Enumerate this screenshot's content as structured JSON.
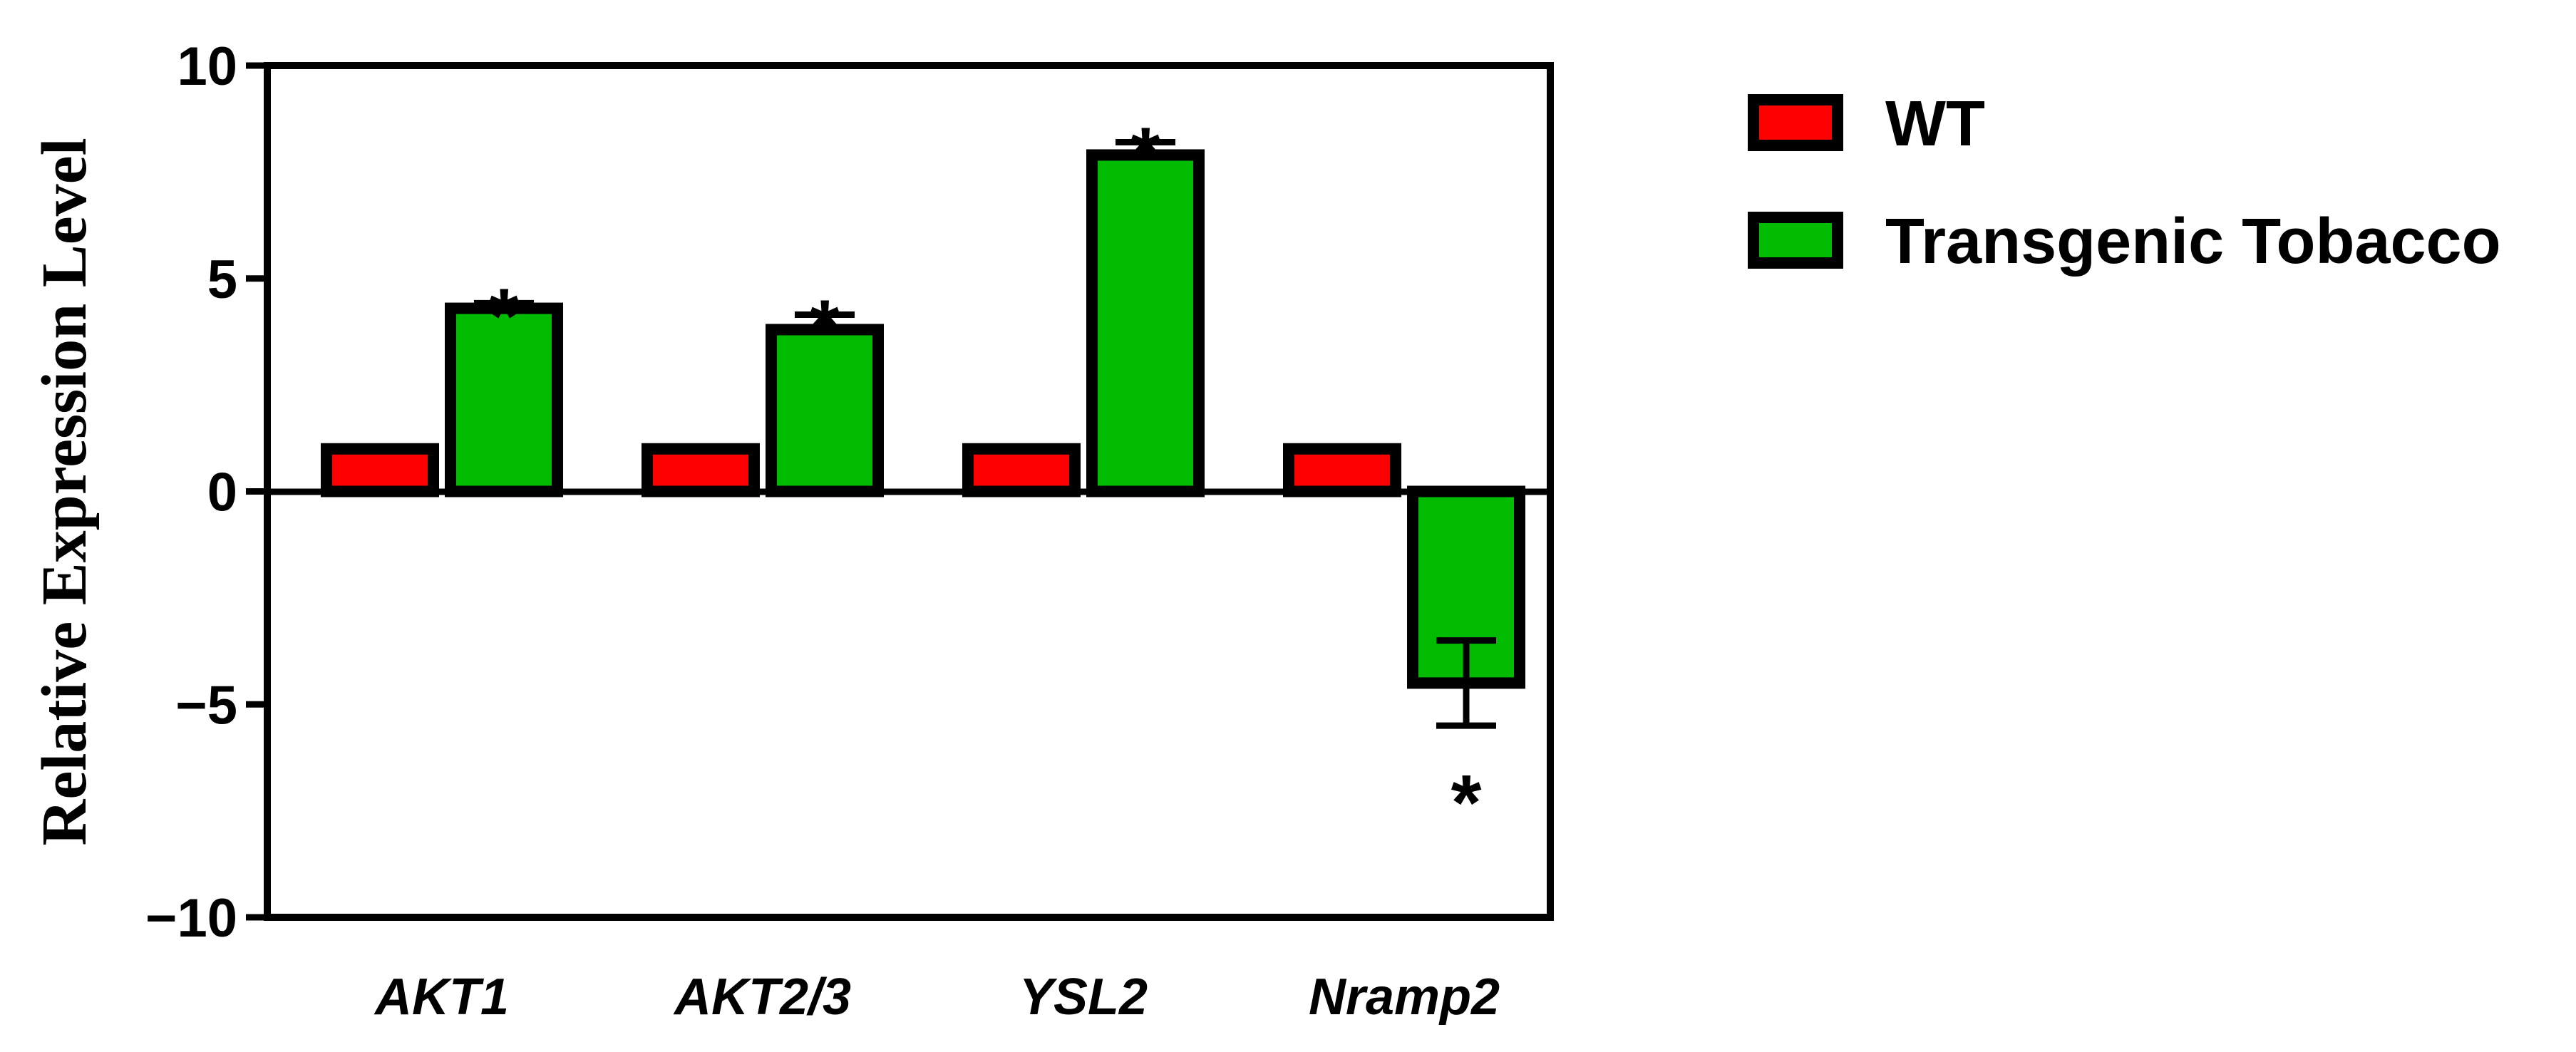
{
  "chart_data": {
    "type": "bar",
    "categories": [
      "AKT1",
      "AKT2/3",
      "YSL2",
      "Nramp2"
    ],
    "series": [
      {
        "name": "WT",
        "color": "#ff0000",
        "values": [
          1.0,
          1.0,
          1.0,
          1.0
        ],
        "errors": [
          0.05,
          0.05,
          0.05,
          0.05
        ]
      },
      {
        "name": "Transgenic Tobacco",
        "color": "#00bb00",
        "values": [
          4.3,
          3.8,
          7.9,
          -4.5
        ],
        "errors": [
          0.12,
          0.35,
          0.3,
          1.0
        ]
      }
    ],
    "significance": [
      "*",
      "*",
      "*",
      "*"
    ],
    "ylabel": "Relative Expression Level",
    "ylim": [
      -10,
      10
    ],
    "yticks": [
      -10,
      -5,
      0,
      5,
      10
    ],
    "ytick_labels": [
      "−10",
      "−5",
      "0",
      "5",
      "10"
    ],
    "grid": false,
    "legend_position": "right"
  }
}
